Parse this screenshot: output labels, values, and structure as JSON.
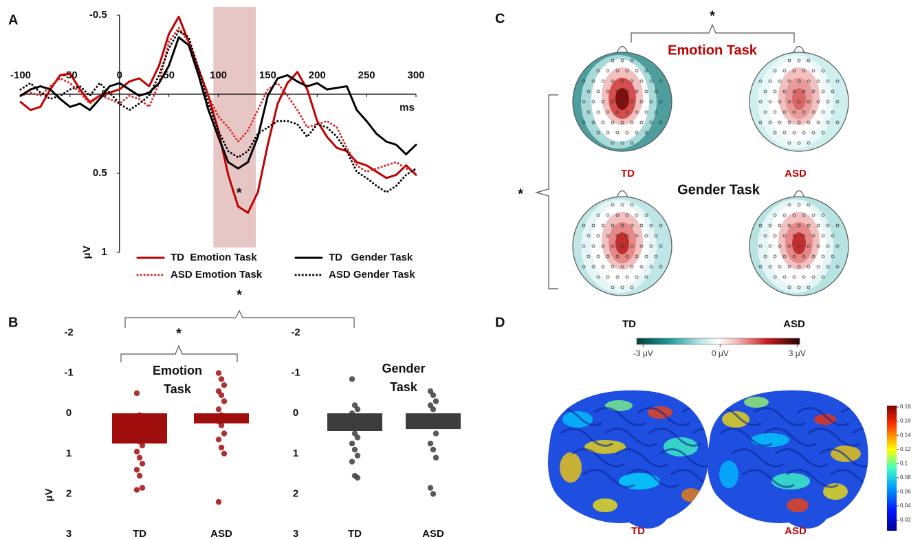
{
  "panel_labels": [
    "A",
    "B",
    "C",
    "D"
  ],
  "chart_data": [
    {
      "type": "line",
      "x": [
        -100,
        -90,
        -80,
        -70,
        -60,
        -50,
        -40,
        -30,
        -20,
        -10,
        0,
        10,
        20,
        30,
        40,
        50,
        60,
        70,
        80,
        90,
        100,
        110,
        120,
        130,
        140,
        150,
        160,
        170,
        180,
        190,
        200,
        210,
        220,
        230,
        240,
        250,
        260,
        270,
        280,
        290,
        300
      ],
      "xlim": [
        -100,
        300
      ],
      "xticks": [
        -100,
        -50,
        0,
        50,
        100,
        150,
        200,
        250,
        300
      ],
      "ylim": [
        -0.5,
        1
      ],
      "yticks": [
        -0.5,
        0,
        0.5,
        1
      ],
      "y_inverted": true,
      "xlabel": "ms",
      "ylabel": "μV",
      "shaded_range": [
        95,
        138
      ],
      "annotations": [
        {
          "text": "*",
          "x": 121,
          "y": 0.63
        }
      ],
      "legend": "bottom",
      "series": [
        {
          "name": "TD  Emotion Task",
          "color": "#c00000",
          "style": "solid",
          "values": [
            0.05,
            0.1,
            0.08,
            -0.03,
            -0.12,
            -0.13,
            -0.03,
            0.05,
            0.01,
            -0.01,
            -0.03,
            -0.08,
            -0.1,
            -0.05,
            -0.18,
            -0.38,
            -0.49,
            -0.33,
            -0.16,
            0.01,
            0.23,
            0.51,
            0.71,
            0.75,
            0.62,
            0.32,
            0.06,
            -0.07,
            -0.14,
            -0.03,
            0.17,
            0.27,
            0.34,
            0.36,
            0.43,
            0.45,
            0.49,
            0.53,
            0.51,
            0.45,
            0.51
          ]
        },
        {
          "name": "ASD Emotion Task",
          "color": "#e02020",
          "style": "dotted",
          "values": [
            0.01,
            -0.01,
            0.01,
            -0.05,
            -0.1,
            -0.07,
            -0.01,
            0.06,
            0.01,
            0.03,
            0.06,
            0.01,
            0.03,
            0.08,
            -0.07,
            -0.33,
            -0.42,
            -0.33,
            -0.16,
            0.01,
            0.14,
            0.21,
            0.3,
            0.23,
            0.1,
            -0.03,
            -0.07,
            0.01,
            0.1,
            0.21,
            0.19,
            0.17,
            0.21,
            0.34,
            0.45,
            0.49,
            0.47,
            0.45,
            0.43,
            0.47,
            0.49
          ]
        },
        {
          "name": "TD   Gender Task",
          "color": "#000000",
          "style": "solid",
          "values": [
            0.01,
            -0.03,
            -0.05,
            -0.03,
            0.03,
            0.08,
            0.06,
            0.1,
            0.03,
            -0.05,
            -0.07,
            -0.03,
            0.01,
            -0.01,
            -0.07,
            -0.18,
            -0.36,
            -0.31,
            -0.12,
            0.1,
            0.27,
            0.43,
            0.47,
            0.43,
            0.27,
            0.01,
            -0.1,
            -0.12,
            -0.08,
            -0.05,
            -0.07,
            -0.03,
            -0.04,
            -0.05,
            0.1,
            0.17,
            0.25,
            0.3,
            0.32,
            0.38,
            0.32
          ]
        },
        {
          "name": "ASD Gender Task",
          "color": "#000000",
          "style": "dotted",
          "values": [
            -0.03,
            -0.07,
            -0.01,
            0.03,
            0.01,
            -0.03,
            -0.05,
            0.01,
            -0.07,
            -0.01,
            0.06,
            0.1,
            0.06,
            0.01,
            -0.12,
            -0.29,
            -0.4,
            -0.36,
            -0.16,
            0.06,
            0.23,
            0.36,
            0.4,
            0.36,
            0.25,
            0.21,
            0.17,
            0.17,
            0.19,
            0.27,
            0.19,
            0.21,
            0.27,
            0.36,
            0.49,
            0.53,
            0.58,
            0.62,
            0.58,
            0.51,
            0.47
          ]
        }
      ]
    },
    {
      "type": "strip",
      "title_lines": [
        "Emotion",
        "Task"
      ],
      "categories": [
        "TD",
        "ASD"
      ],
      "values": [
        0.75,
        0.25
      ],
      "color": "#a00d0d",
      "points": [
        [
          -0.5,
          0.05,
          0.15,
          0.3,
          0.4,
          0.5,
          0.6,
          0.7,
          0.8,
          0.95,
          1.1,
          1.25,
          1.4,
          1.55,
          1.85,
          1.9
        ],
        [
          -1.0,
          -0.85,
          -0.7,
          -0.55,
          -0.45,
          -0.3,
          -0.1,
          0.05,
          0.1,
          0.2,
          0.3,
          0.5,
          0.65,
          0.85,
          1.0,
          2.2
        ]
      ],
      "ylim": [
        -2,
        3
      ],
      "yticks": [
        -2,
        -1,
        0,
        1,
        2,
        3
      ],
      "y_inverted": true,
      "ylabel": "μV"
    },
    {
      "type": "strip",
      "title_lines": [
        "Gender",
        "Task"
      ],
      "categories": [
        "TD",
        "ASD"
      ],
      "values": [
        0.44,
        0.39
      ],
      "color": "#3c3c3c",
      "points": [
        [
          -0.85,
          -0.2,
          -0.1,
          0.0,
          0.1,
          0.2,
          0.3,
          0.5,
          0.6,
          0.75,
          0.9,
          1.05,
          1.2,
          1.55,
          1.6
        ],
        [
          -0.55,
          -0.45,
          -0.3,
          -0.2,
          -0.1,
          0.1,
          0.2,
          0.3,
          0.5,
          0.75,
          0.9,
          1.1,
          1.85,
          2.0
        ]
      ],
      "ylim": [
        -2,
        3
      ],
      "yticks": [
        -2,
        -1,
        0,
        1,
        2,
        3
      ],
      "y_inverted": true
    }
  ],
  "panel_b_significance": [
    "*",
    "*"
  ],
  "topomaps": {
    "significance": [
      "*",
      "*"
    ],
    "rows": [
      "Emotion Task",
      "Gender Task"
    ],
    "top_labels": [
      "TD",
      "ASD"
    ],
    "bottom_labels": [
      "TD",
      "ASD"
    ],
    "colorbar": {
      "lim": [
        -3.25,
        3.1
      ],
      "ticks": [
        {
          "value": -3,
          "label": "-3 μV"
        },
        {
          "value": 0,
          "label": "0 μV"
        },
        {
          "value": 3,
          "label": "3 μV"
        }
      ]
    }
  },
  "brains": {
    "labels": [
      "TD",
      "ASD"
    ],
    "colorbar": {
      "lim": [
        0.005,
        0.182
      ],
      "ticks": [
        0.18,
        0.16,
        0.14,
        0.12,
        0.1,
        0.08,
        0.06,
        0.04,
        0.02
      ]
    }
  }
}
